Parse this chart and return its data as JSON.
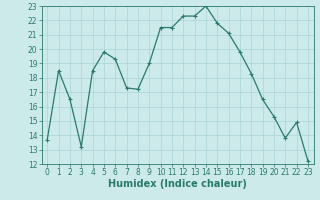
{
  "x": [
    0,
    1,
    2,
    3,
    4,
    5,
    6,
    7,
    8,
    9,
    10,
    11,
    12,
    13,
    14,
    15,
    16,
    17,
    18,
    19,
    20,
    21,
    22,
    23
  ],
  "y": [
    13.7,
    18.5,
    16.5,
    13.2,
    18.5,
    19.8,
    19.3,
    17.3,
    17.2,
    19.0,
    21.5,
    21.5,
    22.3,
    22.3,
    23.0,
    21.8,
    21.1,
    19.8,
    18.3,
    16.5,
    15.3,
    13.8,
    14.9,
    12.2
  ],
  "line_color": "#2a7a6a",
  "marker": "+",
  "marker_size": 3,
  "marker_lw": 0.8,
  "line_width": 0.9,
  "bg_color": "#cceaea",
  "grid_color": "#aad4d4",
  "xlabel": "Humidex (Indice chaleur)",
  "ylim": [
    12,
    23
  ],
  "xlim": [
    -0.5,
    23.5
  ],
  "yticks": [
    12,
    13,
    14,
    15,
    16,
    17,
    18,
    19,
    20,
    21,
    22,
    23
  ],
  "xticks": [
    0,
    1,
    2,
    3,
    4,
    5,
    6,
    7,
    8,
    9,
    10,
    11,
    12,
    13,
    14,
    15,
    16,
    17,
    18,
    19,
    20,
    21,
    22,
    23
  ],
  "tick_label_fontsize": 5.5,
  "xlabel_fontsize": 7.0,
  "axis_color": "#2a7a6a",
  "tick_color": "#2a7a6a"
}
